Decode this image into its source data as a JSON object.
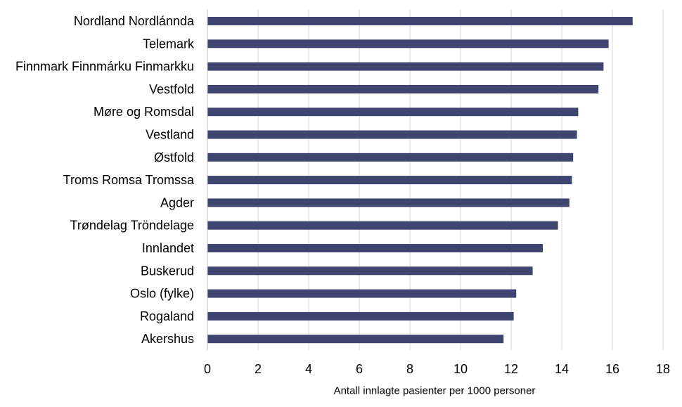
{
  "chart_data": {
    "type": "bar",
    "orientation": "horizontal",
    "title": "",
    "xlabel": "Antall innlagte pasienter per 1000 personer",
    "ylabel": "",
    "xlim": [
      0,
      18
    ],
    "xticks": [
      0,
      2,
      4,
      6,
      8,
      10,
      12,
      14,
      16,
      18
    ],
    "grid": true,
    "legend": "none",
    "bar_color": "#3f4470",
    "categories": [
      "Nordland Nordlánnda",
      "Telemark",
      "Finnmark Finnmárku Finmarkku",
      "Vestfold",
      "Møre og Romsdal",
      "Vestland",
      "Østfold",
      "Troms Romsa Tromssa",
      "Agder",
      "Trøndelag Tröndelage",
      "Innlandet",
      "Buskerud",
      "Oslo (fylke)",
      "Rogaland",
      "Akershus"
    ],
    "values": [
      16.8,
      15.85,
      15.65,
      15.45,
      14.65,
      14.6,
      14.45,
      14.4,
      14.3,
      13.85,
      13.25,
      12.85,
      12.2,
      12.1,
      11.7
    ]
  }
}
